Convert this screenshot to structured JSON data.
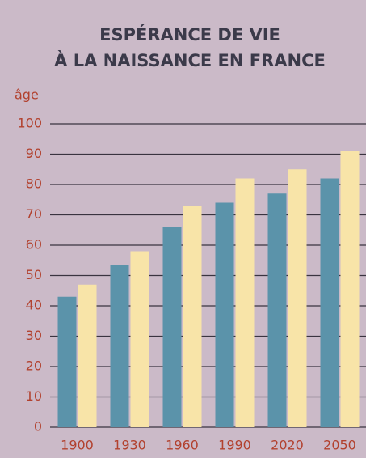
{
  "chart_data": {
    "type": "bar",
    "title": [
      "ESPÉRANCE DE VIE",
      "À LA NAISSANCE EN FRANCE"
    ],
    "y_label": "âge",
    "categories": [
      "1900",
      "1930",
      "1960",
      "1990",
      "2020",
      "2050"
    ],
    "series": [
      {
        "color": "#5b93aa",
        "values": [
          43,
          53.5,
          66,
          74,
          77,
          82
        ]
      },
      {
        "color": "#f8e4a8",
        "values": [
          47,
          58,
          73,
          82,
          85,
          91
        ]
      }
    ],
    "ylim": [
      0,
      100
    ],
    "yticks": [
      0,
      10,
      20,
      30,
      40,
      50,
      60,
      70,
      80,
      90,
      100
    ],
    "grid": true
  }
}
